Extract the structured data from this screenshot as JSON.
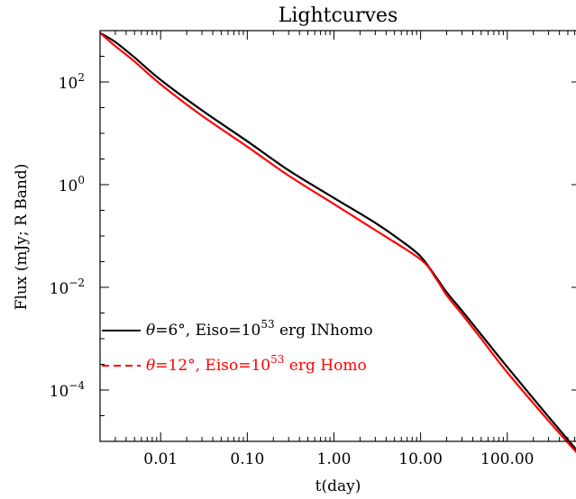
{
  "chart_data": {
    "type": "line",
    "title": "Lightcurves",
    "xlabel": "t(day)",
    "ylabel": "Flux (mJy; R Band)",
    "x_scale": "log",
    "y_scale": "log",
    "xlim": [
      0.002,
      700
    ],
    "ylim": [
      1e-05,
      1000
    ],
    "x_ticks": [
      {
        "value": 0.01,
        "label": "0.01"
      },
      {
        "value": 0.1,
        "label": "0.10"
      },
      {
        "value": 1,
        "label": "1.00"
      },
      {
        "value": 10,
        "label": "10.00"
      },
      {
        "value": 100,
        "label": "100.00"
      }
    ],
    "y_ticks": [
      {
        "value": 0.0001,
        "base": "10",
        "exp": "−4"
      },
      {
        "value": 0.01,
        "base": "10",
        "exp": "−2"
      },
      {
        "value": 1,
        "base": "10",
        "exp": "0"
      },
      {
        "value": 100,
        "base": "10",
        "exp": "2"
      }
    ],
    "grid": false,
    "legend_position": "bottom-left",
    "series": [
      {
        "name": "INhomo",
        "legend": {
          "sym": "θ",
          "a": "=6°, Eiso=10",
          "exp": "53",
          "b": " erg INhomo"
        },
        "color": "#000000",
        "dash": "solid",
        "x": [
          0.002,
          0.003,
          0.005,
          0.01,
          0.03,
          0.1,
          0.3,
          1,
          3,
          6,
          10,
          15,
          20,
          30,
          50,
          100,
          300,
          700
        ],
        "y": [
          900,
          600,
          300,
          110,
          28,
          7,
          1.9,
          0.55,
          0.18,
          0.08,
          0.04,
          0.016,
          0.008,
          0.0035,
          0.0012,
          0.00028,
          3e-05,
          5.5e-06
        ]
      },
      {
        "name": "Homo",
        "legend": {
          "sym": "θ",
          "a": "=12°, Eiso=10",
          "exp": "53",
          "b": " erg Homo"
        },
        "color": "#ff0000",
        "dash": "dashed",
        "x": [
          0.002,
          0.003,
          0.005,
          0.01,
          0.03,
          0.1,
          0.3,
          1,
          3,
          10,
          15,
          20,
          30,
          50,
          100,
          300,
          700
        ],
        "y": [
          900,
          500,
          250,
          90,
          22,
          5.5,
          1.5,
          0.42,
          0.13,
          0.035,
          0.015,
          0.007,
          0.003,
          0.001,
          0.00022,
          2.5e-05,
          5e-06
        ]
      }
    ]
  }
}
